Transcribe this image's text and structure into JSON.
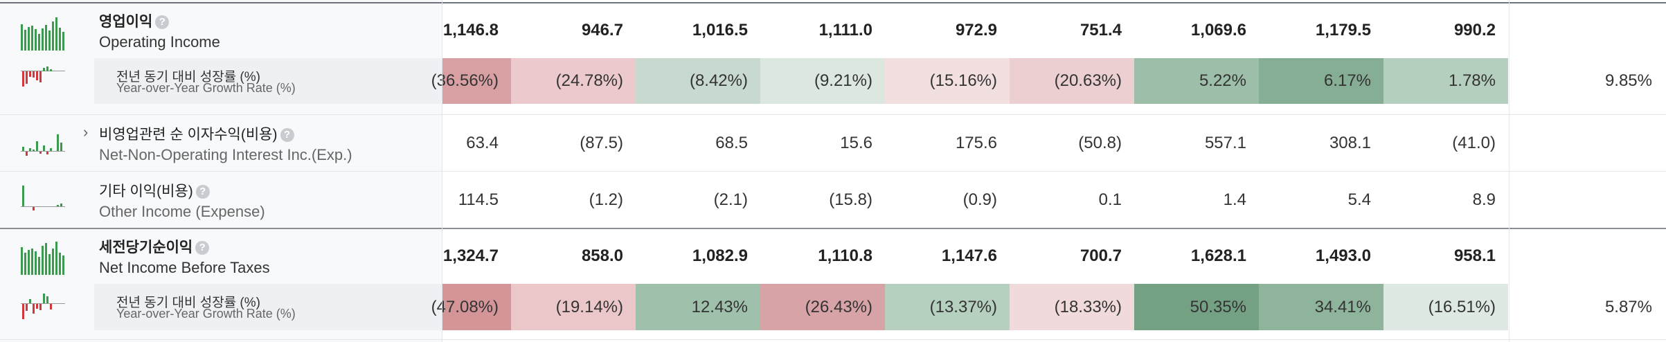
{
  "rows": [
    {
      "ko": "영업이익",
      "en": "Operating Income",
      "values": [
        "1,146.8",
        "946.7",
        "1,016.5",
        "1,111.0",
        "972.9",
        "751.4",
        "1,069.6",
        "1,179.5",
        "990.2"
      ],
      "sub": {
        "ko": "전년 동기 대비 성장률 (%)",
        "en": "Year-over-Year Growth Rate (%)",
        "values": [
          "(36.56%)",
          "(24.78%)",
          "(8.42%)",
          "(9.21%)",
          "(15.16%)",
          "(20.63%)",
          "5.22%",
          "6.17%",
          "1.78%"
        ],
        "colors": [
          "#d9a0a4",
          "#ecc9cc",
          "#c8d9cf",
          "#dce7e0",
          "#f2dfe0",
          "#ebcfd1",
          "#9dbfa9",
          "#86ae95",
          "#b5cfbf"
        ],
        "summary": "9.85%"
      }
    },
    {
      "ko": "비영업관련 순 이자수익(비용)",
      "en": "Net-Non-Operating Interest Inc.(Exp.)",
      "values": [
        "63.4",
        "(87.5)",
        "68.5",
        "15.6",
        "175.6",
        "(50.8)",
        "557.1",
        "308.1",
        "(41.0)"
      ]
    },
    {
      "ko": "기타 이익(비용)",
      "en": "Other Income (Expense)",
      "values": [
        "114.5",
        "(1.2)",
        "(2.1)",
        "(15.8)",
        "(0.9)",
        "0.1",
        "1.4",
        "5.4",
        "8.9"
      ]
    },
    {
      "ko": "세전당기순이익",
      "en": "Net Income Before Taxes",
      "values": [
        "1,324.7",
        "858.0",
        "1,082.9",
        "1,110.8",
        "1,147.6",
        "700.7",
        "1,628.1",
        "1,493.0",
        "958.1"
      ],
      "sub": {
        "ko": "전년 동기 대비 성장률 (%)",
        "en": "Year-over-Year Growth Rate (%)",
        "values": [
          "(47.08%)",
          "(19.14%)",
          "12.43%",
          "(26.43%)",
          "(13.37%)",
          "(18.33%)",
          "50.35%",
          "34.41%",
          "(16.51%)"
        ],
        "colors": [
          "#d49599",
          "#ecc7ca",
          "#9fc1ab",
          "#d8a3a7",
          "#b6d0c0",
          "#f0dadb",
          "#74a084",
          "#8fb49c",
          "#dfe9e3"
        ],
        "summary": "5.87%"
      }
    }
  ],
  "icons": {
    "help": "question-icon",
    "expand": "chevron-right-icon"
  }
}
